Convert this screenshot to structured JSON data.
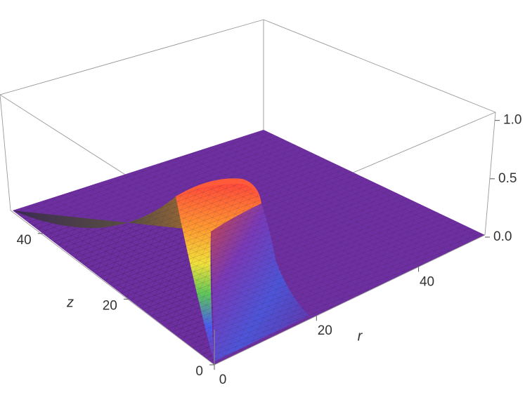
{
  "chart_data": {
    "type": "surface3d",
    "xlabel": "r",
    "ylabel": "z",
    "xlim": [
      0,
      53
    ],
    "xticks": [
      0,
      20,
      40
    ],
    "ylim": [
      0,
      47
    ],
    "yticks": [
      0,
      20,
      40
    ],
    "zlim": [
      0,
      1.07
    ],
    "zticks": [
      {
        "value": 0,
        "label": "0.0"
      },
      0.5,
      {
        "value": 1,
        "label": "1.0"
      }
    ]
  }
}
